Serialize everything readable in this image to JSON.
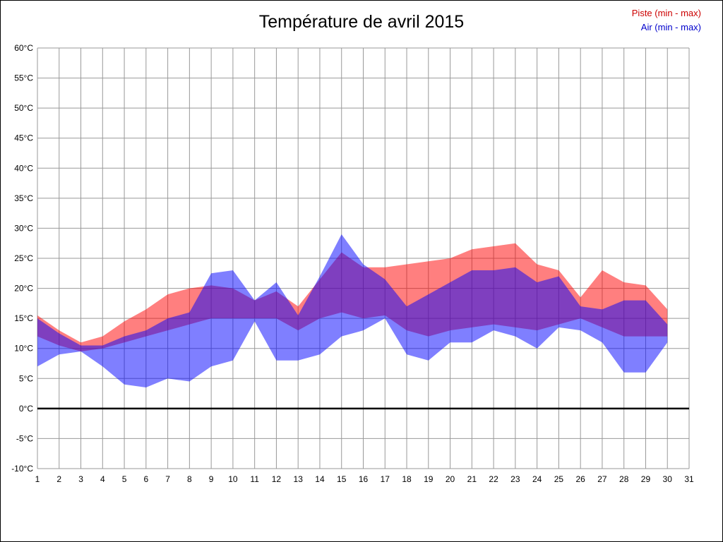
{
  "title": "Température de avril 2015",
  "legend": {
    "piste": {
      "label": "Piste (min - max)",
      "color": "#cc0000"
    },
    "air": {
      "label": "Air (min - max)",
      "color": "#0000cc"
    }
  },
  "chart_data": {
    "type": "area",
    "title": "Température de avril 2015",
    "xlabel": "",
    "ylabel": "",
    "xlim": [
      1,
      31
    ],
    "ylim": [
      -10,
      60
    ],
    "y_tick_step": 5,
    "y_ticks": [
      60,
      55,
      50,
      45,
      40,
      35,
      30,
      25,
      20,
      15,
      10,
      5,
      0,
      -5,
      -10
    ],
    "y_tick_suffix": "°C",
    "x_ticks": [
      1,
      2,
      3,
      4,
      5,
      6,
      7,
      8,
      9,
      10,
      11,
      12,
      13,
      14,
      15,
      16,
      17,
      18,
      19,
      20,
      21,
      22,
      23,
      24,
      25,
      26,
      27,
      28,
      29,
      30,
      31
    ],
    "grid": true,
    "grid_color": "#999999",
    "zero_line_value": 0,
    "zero_line_color": "#000000",
    "legend_position": "top-right",
    "x": [
      1,
      2,
      3,
      4,
      5,
      6,
      7,
      8,
      9,
      10,
      11,
      12,
      13,
      14,
      15,
      16,
      17,
      18,
      19,
      20,
      21,
      22,
      23,
      24,
      25,
      26,
      27,
      28,
      29,
      30
    ],
    "series": [
      {
        "name": "Piste",
        "band": "min-max",
        "color": "#ff0000",
        "opacity": 0.5,
        "min": [
          12,
          10.5,
          9.5,
          10,
          11,
          12,
          13,
          14,
          15,
          15,
          15,
          15,
          13,
          15,
          16,
          15,
          15.5,
          13,
          12,
          13,
          13.5,
          14,
          13.5,
          13,
          14,
          15,
          13.5,
          12,
          12,
          12
        ],
        "max": [
          15.5,
          13,
          11,
          12,
          14.5,
          16.5,
          19,
          20,
          20.5,
          20,
          18,
          19.5,
          17,
          21.5,
          26,
          23.5,
          23.5,
          24,
          24.5,
          25,
          26.5,
          27,
          27.5,
          24,
          23,
          18.5,
          23,
          21,
          20.5,
          16.5
        ]
      },
      {
        "name": "Air",
        "band": "min-max",
        "color": "#0000ff",
        "opacity": 0.5,
        "min": [
          7,
          9,
          9.5,
          7,
          4,
          3.5,
          5,
          4.5,
          7,
          8,
          14.5,
          8,
          8,
          9,
          12,
          13,
          15,
          9,
          8,
          11,
          11,
          13,
          12,
          10,
          13.5,
          13,
          11,
          6,
          6,
          11
        ],
        "max": [
          15,
          12.5,
          10.5,
          10.5,
          12,
          13,
          15,
          16,
          22.5,
          23,
          18,
          21,
          15.5,
          22,
          29,
          24,
          21.5,
          17,
          19,
          21,
          23,
          23,
          23.5,
          21,
          22,
          17,
          16.5,
          18,
          18,
          14
        ]
      }
    ]
  }
}
